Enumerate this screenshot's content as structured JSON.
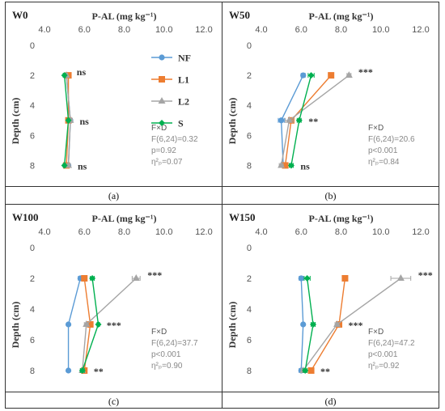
{
  "chart_data": [
    {
      "type": "line",
      "panel": "W0",
      "caption": "(a)",
      "xlabel": "P-AL (mg kg⁻¹)",
      "ylabel": "Depth (cm)",
      "xlim": [
        4.0,
        12.0
      ],
      "xticks": [
        "4.0",
        "6.0",
        "8.0",
        "10.0",
        "12.0"
      ],
      "ylim": [
        0,
        9
      ],
      "yticks": [
        "0",
        "2",
        "4",
        "6",
        "8"
      ],
      "depths": [
        2,
        5,
        8
      ],
      "series": [
        {
          "name": "NF",
          "values": [
            5.1,
            5.3,
            5.2
          ],
          "err": [
            0.05,
            0.1,
            0.05
          ]
        },
        {
          "name": "L1",
          "values": [
            5.2,
            5.2,
            5.1
          ],
          "err": [
            0.05,
            0.05,
            0.05
          ]
        },
        {
          "name": "L2",
          "values": [
            5.1,
            5.3,
            5.2
          ],
          "err": [
            0.05,
            0.1,
            0.1
          ]
        },
        {
          "name": "S",
          "values": [
            5.0,
            5.2,
            5.0
          ],
          "err": [
            0.05,
            0.05,
            0.05
          ]
        }
      ],
      "significance": [
        "ns",
        "ns",
        "ns"
      ],
      "stats": {
        "head": "F×D",
        "f": "F(6,24)=0.32",
        "p": "p=0.92",
        "eta": "η²ₚ=0.07"
      }
    },
    {
      "type": "line",
      "panel": "W50",
      "caption": "(b)",
      "xlabel": "P-AL (mg kg⁻¹)",
      "ylabel": "Depth (cm)",
      "xlim": [
        4.0,
        12.0
      ],
      "xticks": [
        "4.0",
        "6.0",
        "8.0",
        "10.0",
        "12.0"
      ],
      "ylim": [
        0,
        9
      ],
      "yticks": [
        "0",
        "2",
        "4",
        "6",
        "8"
      ],
      "depths": [
        2,
        5,
        8
      ],
      "series": [
        {
          "name": "NF",
          "values": [
            6.1,
            5.0,
            5.1
          ],
          "err": [
            0.1,
            0.15,
            0.1
          ]
        },
        {
          "name": "L1",
          "values": [
            7.5,
            5.5,
            5.2
          ],
          "err": [
            0.1,
            0.1,
            0.1
          ]
        },
        {
          "name": "L2",
          "values": [
            8.4,
            5.4,
            5.0
          ],
          "err": [
            0.1,
            0.2,
            0.1
          ]
        },
        {
          "name": "S",
          "values": [
            6.5,
            5.9,
            5.5
          ],
          "err": [
            0.15,
            0.1,
            0.1
          ]
        }
      ],
      "significance": [
        "***",
        "**",
        "ns"
      ],
      "stats": {
        "head": "F×D",
        "f": "F(6,24)=20.6",
        "p": "p<0.001",
        "eta": "η²ₚ=0.84"
      }
    },
    {
      "type": "line",
      "panel": "W100",
      "caption": "(c)",
      "xlabel": "P-AL (mg kg⁻¹)",
      "ylabel": "Depth (cm)",
      "xlim": [
        4.0,
        12.0
      ],
      "xticks": [
        "4.0",
        "6.0",
        "8.0",
        "10.0",
        "12.0"
      ],
      "ylim": [
        0,
        9
      ],
      "yticks": [
        "0",
        "2",
        "4",
        "6",
        "8"
      ],
      "depths": [
        2,
        5,
        8
      ],
      "series": [
        {
          "name": "NF",
          "values": [
            5.8,
            5.2,
            5.2
          ],
          "err": [
            0.1,
            0.05,
            0.05
          ]
        },
        {
          "name": "L1",
          "values": [
            6.0,
            6.3,
            6.0
          ],
          "err": [
            0.1,
            0.1,
            0.1
          ]
        },
        {
          "name": "L2",
          "values": [
            8.6,
            6.1,
            5.9
          ],
          "err": [
            0.2,
            0.1,
            0.1
          ]
        },
        {
          "name": "S",
          "values": [
            6.4,
            6.7,
            5.9
          ],
          "err": [
            0.1,
            0.05,
            0.1
          ]
        }
      ],
      "significance": [
        "***",
        "***",
        "**"
      ],
      "stats": {
        "head": "F×D",
        "f": "F(6,24)=37.7",
        "p": "p<0.001",
        "eta": "η²ₚ=0.90"
      }
    },
    {
      "type": "line",
      "panel": "W150",
      "caption": "(d)",
      "xlabel": "P-AL (mg kg⁻¹)",
      "ylabel": "Depth (cm)",
      "xlim": [
        4.0,
        12.0
      ],
      "xticks": [
        "4.0",
        "6.0",
        "8.0",
        "10.0",
        "12.0"
      ],
      "ylim": [
        0,
        9
      ],
      "yticks": [
        "0",
        "2",
        "4",
        "6",
        "8"
      ],
      "depths": [
        2,
        5,
        8
      ],
      "series": [
        {
          "name": "NF",
          "values": [
            6.0,
            6.1,
            6.0
          ],
          "err": [
            0.1,
            0.05,
            0.1
          ]
        },
        {
          "name": "L1",
          "values": [
            8.2,
            7.9,
            6.5
          ],
          "err": [
            0.1,
            0.1,
            0.1
          ]
        },
        {
          "name": "L2",
          "values": [
            11.0,
            7.8,
            6.1
          ],
          "err": [
            0.5,
            0.1,
            0.1
          ]
        },
        {
          "name": "S",
          "values": [
            6.3,
            6.6,
            6.2
          ],
          "err": [
            0.15,
            0.1,
            0.1
          ]
        }
      ],
      "significance": [
        "***",
        "***",
        "**"
      ],
      "stats": {
        "head": "F×D",
        "f": "F(6,24)=47.2",
        "p": "p<0.001",
        "eta": "η²ₚ=0.92"
      }
    }
  ],
  "colors": {
    "NF": "#5b9bd5",
    "L1": "#ed7d31",
    "L2": "#a5a5a5",
    "S": "#00b050"
  },
  "legend": [
    "NF",
    "L1",
    "L2",
    "S"
  ]
}
